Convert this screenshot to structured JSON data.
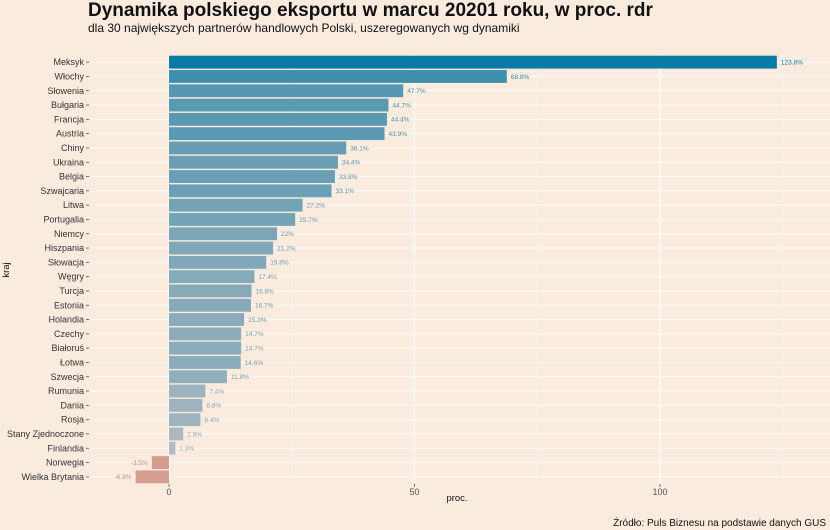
{
  "chart_data": {
    "type": "bar",
    "orientation": "horizontal",
    "title": "Dynamika polskiego eksportu w marcu 20201 roku, w proc. rdr",
    "subtitle": "dla 30 największych partnerów handlowych Polski, uszeregowanych wg dynamiki",
    "xlabel": "proc.",
    "ylabel": "kraj",
    "caption": "Źródło: Puls Biznesu na podstawie danych GUS",
    "xlim": [
      -13,
      125
    ],
    "xticks": [
      0,
      50,
      100
    ],
    "grid": true,
    "legend": "none",
    "categories": [
      "Meksyk",
      "Włochy",
      "Słowenia",
      "Bułgaria",
      "Francja",
      "Austria",
      "Chiny",
      "Ukraina",
      "Belgia",
      "Szwajcaria",
      "Litwa",
      "Portugalia",
      "Niemcy",
      "Hiszpania",
      "Słowacja",
      "Węgry",
      "Turcja",
      "Estonia",
      "Holandia",
      "Czechy",
      "Białoruś",
      "Łotwa",
      "Szwecja",
      "Rumunia",
      "Dania",
      "Rosja",
      "Stany Zjednoczone",
      "Finlandia",
      "Norwegia",
      "Wielka Brytania"
    ],
    "values": [
      123.8,
      68.8,
      47.7,
      44.7,
      44.4,
      43.9,
      36.1,
      34.4,
      33.8,
      33.1,
      27.2,
      25.7,
      22,
      21.2,
      19.8,
      17.4,
      16.8,
      16.7,
      15.3,
      14.7,
      14.7,
      14.6,
      11.8,
      7.4,
      6.8,
      6.4,
      2.9,
      1.3,
      -3.5,
      -6.8
    ],
    "value_labels": [
      "123.8%",
      "68.8%",
      "47.7%",
      "44.7%",
      "44.4%",
      "43.9%",
      "36.1%",
      "34.4%",
      "33.8%",
      "33.1%",
      "27.2%",
      "25.7%",
      "22%",
      "21.2%",
      "19.8%",
      "17.4%",
      "16.8%",
      "16.7%",
      "15.3%",
      "14.7%",
      "14.7%",
      "14.6%",
      "11.8%",
      "7.4%",
      "6.8%",
      "6.4%",
      "2.9%",
      "1.3%",
      "-3.5%",
      "-6.8%"
    ],
    "colors": {
      "high": "#0b7aa6",
      "zero": "#c4c2c3",
      "negative": "#d59d8f",
      "background": "#faebdf",
      "grid": "#ffffff"
    }
  }
}
